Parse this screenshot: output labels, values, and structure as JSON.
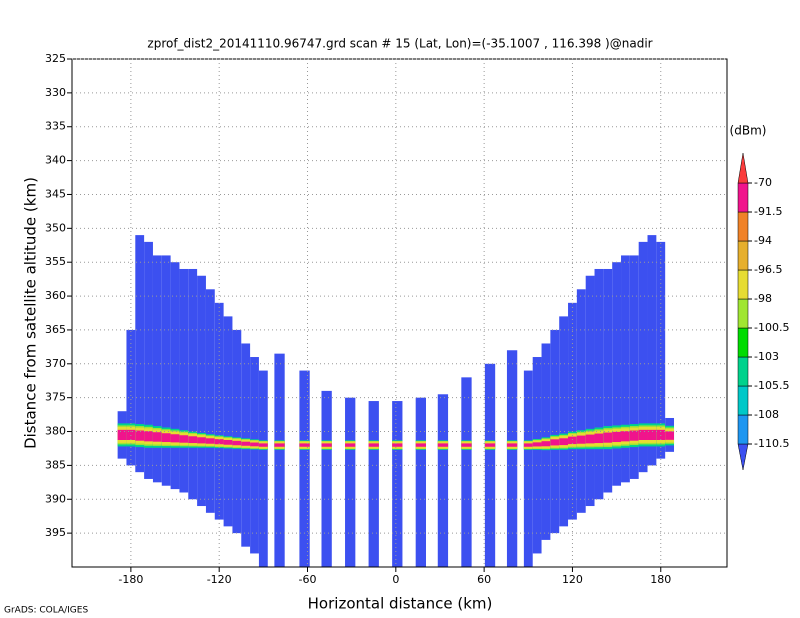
{
  "chart_data": {
    "type": "swath",
    "title": "zprof_dist2_20141110.96747.grd  scan # 15  (Lat, Lon)=(-35.1007 , 116.398 )@nadir",
    "x_label": "Horizontal distance (km)",
    "y_label": "Distance from satellite altitude (km)",
    "colorbar_title": "(dBm)",
    "footer": "GrADS: COLA/IGES",
    "xlim": [
      -220,
      225
    ],
    "ylim": [
      325,
      400
    ],
    "y_reversed": true,
    "xticks": [
      -180,
      -120,
      -60,
      0,
      60,
      120,
      180
    ],
    "yticks": [
      325,
      330,
      335,
      340,
      345,
      350,
      355,
      360,
      365,
      370,
      375,
      380,
      385,
      390,
      395
    ],
    "grid": true,
    "levels": [
      -110.5,
      -108,
      -105.5,
      -103,
      -100.5,
      -98,
      -96.5,
      -94,
      -91.5,
      -70
    ],
    "colors": [
      "#3c50f0",
      "#1e96f0",
      "#00c8c8",
      "#00d28c",
      "#00dc00",
      "#a0e632",
      "#e6dc32",
      "#e6af2d",
      "#f08228",
      "#f0148c",
      "#fa3c3c"
    ],
    "columns": [
      {
        "x": -186,
        "width": 6,
        "top": 377,
        "bottom": 384,
        "surface": 380.5,
        "thickness": 3
      },
      {
        "x": -180,
        "width": 6,
        "top": 365,
        "bottom": 385,
        "surface": 380.5,
        "thickness": 3
      },
      {
        "x": -174,
        "width": 6,
        "top": 351,
        "bottom": 386,
        "surface": 380.6,
        "thickness": 3
      },
      {
        "x": -168,
        "width": 6,
        "top": 352,
        "bottom": 387,
        "surface": 380.7,
        "thickness": 3
      },
      {
        "x": -162,
        "width": 6,
        "top": 354,
        "bottom": 387.5,
        "surface": 380.8,
        "thickness": 2.8
      },
      {
        "x": -156,
        "width": 6,
        "top": 354,
        "bottom": 388,
        "surface": 380.9,
        "thickness": 2.6
      },
      {
        "x": -150,
        "width": 6,
        "top": 355,
        "bottom": 388.5,
        "surface": 381,
        "thickness": 2.4
      },
      {
        "x": -144,
        "width": 6,
        "top": 356,
        "bottom": 389,
        "surface": 381.1,
        "thickness": 2.2
      },
      {
        "x": -138,
        "width": 6,
        "top": 356,
        "bottom": 390,
        "surface": 381.2,
        "thickness": 2
      },
      {
        "x": -132,
        "width": 6,
        "top": 357,
        "bottom": 391,
        "surface": 381.3,
        "thickness": 1.8
      },
      {
        "x": -126,
        "width": 6,
        "top": 359,
        "bottom": 392,
        "surface": 381.4,
        "thickness": 1.6
      },
      {
        "x": -120,
        "width": 6,
        "top": 361,
        "bottom": 393,
        "surface": 381.5,
        "thickness": 1.5
      },
      {
        "x": -114,
        "width": 6,
        "top": 363,
        "bottom": 394,
        "surface": 381.6,
        "thickness": 1.4
      },
      {
        "x": -108,
        "width": 6,
        "top": 365,
        "bottom": 395,
        "surface": 381.7,
        "thickness": 1.3
      },
      {
        "x": -102,
        "width": 6,
        "top": 367,
        "bottom": 397,
        "surface": 381.8,
        "thickness": 1.2
      },
      {
        "x": -96,
        "width": 6,
        "top": 369,
        "bottom": 398,
        "surface": 381.9,
        "thickness": 1.1
      },
      {
        "x": -90,
        "width": 6,
        "top": 371,
        "bottom": 400,
        "surface": 382,
        "thickness": 1
      },
      {
        "x": -79,
        "width": 7,
        "top": 368.5,
        "bottom": 400,
        "surface": 382,
        "thickness": 1
      },
      {
        "x": -62,
        "width": 7,
        "top": 371,
        "bottom": 400,
        "surface": 382,
        "thickness": 1
      },
      {
        "x": -47,
        "width": 7,
        "top": 374,
        "bottom": 400,
        "surface": 382,
        "thickness": 1
      },
      {
        "x": -31,
        "width": 7,
        "top": 375,
        "bottom": 400,
        "surface": 382,
        "thickness": 1
      },
      {
        "x": -15,
        "width": 7,
        "top": 375.5,
        "bottom": 400,
        "surface": 382,
        "thickness": 1
      },
      {
        "x": 1,
        "width": 7,
        "top": 375.5,
        "bottom": 400,
        "surface": 382,
        "thickness": 1
      },
      {
        "x": 17,
        "width": 7,
        "top": 375,
        "bottom": 400,
        "surface": 382,
        "thickness": 1
      },
      {
        "x": 32,
        "width": 7,
        "top": 374.5,
        "bottom": 400,
        "surface": 382,
        "thickness": 1
      },
      {
        "x": 48,
        "width": 7,
        "top": 372,
        "bottom": 400,
        "surface": 382,
        "thickness": 1
      },
      {
        "x": 64,
        "width": 7,
        "top": 370,
        "bottom": 400,
        "surface": 382,
        "thickness": 1
      },
      {
        "x": 79,
        "width": 7,
        "top": 368,
        "bottom": 400,
        "surface": 382,
        "thickness": 1
      },
      {
        "x": 90,
        "width": 6,
        "top": 371,
        "bottom": 400,
        "surface": 382,
        "thickness": 1
      },
      {
        "x": 96,
        "width": 6,
        "top": 369,
        "bottom": 398,
        "surface": 381.9,
        "thickness": 1.2
      },
      {
        "x": 102,
        "width": 6,
        "top": 367,
        "bottom": 396,
        "surface": 381.8,
        "thickness": 1.5
      },
      {
        "x": 108,
        "width": 6,
        "top": 365,
        "bottom": 395,
        "surface": 381.6,
        "thickness": 1.8
      },
      {
        "x": 114,
        "width": 6,
        "top": 363,
        "bottom": 394,
        "surface": 381.5,
        "thickness": 2
      },
      {
        "x": 120,
        "width": 6,
        "top": 361,
        "bottom": 393,
        "surface": 381.3,
        "thickness": 2.2
      },
      {
        "x": 126,
        "width": 6,
        "top": 359,
        "bottom": 392,
        "surface": 381.2,
        "thickness": 2.4
      },
      {
        "x": 132,
        "width": 6,
        "top": 357,
        "bottom": 391,
        "surface": 381.1,
        "thickness": 2.6
      },
      {
        "x": 138,
        "width": 6,
        "top": 356,
        "bottom": 390,
        "surface": 381,
        "thickness": 2.8
      },
      {
        "x": 144,
        "width": 6,
        "top": 356,
        "bottom": 389,
        "surface": 380.9,
        "thickness": 3
      },
      {
        "x": 150,
        "width": 6,
        "top": 355,
        "bottom": 388,
        "surface": 380.8,
        "thickness": 3
      },
      {
        "x": 156,
        "width": 6,
        "top": 354,
        "bottom": 387.5,
        "surface": 380.7,
        "thickness": 3
      },
      {
        "x": 162,
        "width": 6,
        "top": 354,
        "bottom": 387,
        "surface": 380.6,
        "thickness": 3
      },
      {
        "x": 168,
        "width": 6,
        "top": 352,
        "bottom": 386,
        "surface": 380.5,
        "thickness": 3
      },
      {
        "x": 174,
        "width": 6,
        "top": 351,
        "bottom": 385,
        "surface": 380.5,
        "thickness": 3
      },
      {
        "x": 180,
        "width": 6,
        "top": 352,
        "bottom": 384,
        "surface": 380.5,
        "thickness": 3
      },
      {
        "x": 186,
        "width": 6,
        "top": 378,
        "bottom": 383,
        "surface": 380.6,
        "thickness": 2.5
      }
    ]
  }
}
